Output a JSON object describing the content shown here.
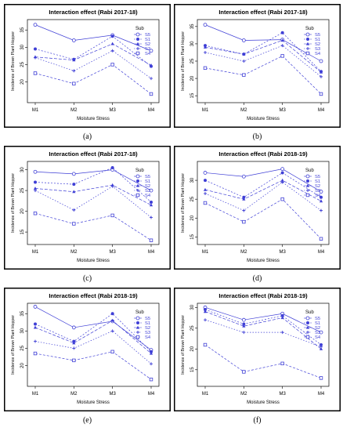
{
  "chart_data": [
    {
      "type": "line",
      "panel_label": "(a)",
      "title": "Interaction effect (Rabi 2017-18)",
      "xlabel": "Moisture Stress",
      "ylabel": "Incidence of Brown Plant Hopper",
      "categories": [
        "M1",
        "M2",
        "M3",
        "M4"
      ],
      "ylim": [
        14,
        38
      ],
      "yticks": [
        "20",
        "25",
        "30",
        "35"
      ],
      "legend_title": "Sub",
      "legend_position": "top-right",
      "series": [
        {
          "name": "S5",
          "values": [
            36.5,
            32.0,
            33.5,
            29.0
          ]
        },
        {
          "name": "S1",
          "values": [
            29.5,
            26.5,
            33.2,
            24.5
          ]
        },
        {
          "name": "S2",
          "values": [
            27.2,
            26.3,
            31.0,
            24.8
          ]
        },
        {
          "name": "S3",
          "values": [
            27.0,
            23.2,
            29.0,
            21.0
          ]
        },
        {
          "name": "S4",
          "values": [
            22.5,
            19.5,
            25.0,
            16.5
          ]
        }
      ]
    },
    {
      "type": "line",
      "panel_label": "(b)",
      "title": "Interaction effect (Rabi 2017-18)",
      "xlabel": "Moisture Stress",
      "ylabel": "Incidence of Brown Plant Hopper",
      "categories": [
        "M1",
        "M2",
        "M3",
        "M4"
      ],
      "ylim": [
        13,
        37
      ],
      "yticks": [
        "15",
        "20",
        "25",
        "30",
        "35"
      ],
      "legend_title": "Sub",
      "legend_position": "top-right",
      "series": [
        {
          "name": "S5",
          "values": [
            35.5,
            31.0,
            31.2,
            25.0
          ]
        },
        {
          "name": "S1",
          "values": [
            29.5,
            27.0,
            33.2,
            22.0
          ]
        },
        {
          "name": "S2",
          "values": [
            29.0,
            27.0,
            31.0,
            21.8
          ]
        },
        {
          "name": "S3",
          "values": [
            27.5,
            25.0,
            29.5,
            20.5
          ]
        },
        {
          "name": "S4",
          "values": [
            23.0,
            21.0,
            26.5,
            15.5
          ]
        }
      ]
    },
    {
      "type": "line",
      "panel_label": "(c)",
      "title": "Interaction effect (Rabi 2017-18)",
      "xlabel": "Moisture Stress",
      "ylabel": "Incidence of Brown Plant Hopper",
      "categories": [
        "M1",
        "M2",
        "M3",
        "M4"
      ],
      "ylim": [
        12,
        32
      ],
      "yticks": [
        "15",
        "20",
        "25",
        "30"
      ],
      "legend_title": "Sub",
      "legend_position": "top-right",
      "series": [
        {
          "name": "S5",
          "values": [
            29.5,
            29.0,
            30.0,
            25.0
          ]
        },
        {
          "name": "S1",
          "values": [
            27.0,
            26.5,
            30.5,
            22.2
          ]
        },
        {
          "name": "S2",
          "values": [
            25.5,
            24.7,
            26.3,
            21.5
          ]
        },
        {
          "name": "S3",
          "values": [
            25.0,
            20.3,
            26.0,
            18.5
          ]
        },
        {
          "name": "S4",
          "values": [
            19.5,
            17.0,
            19.0,
            13.0
          ]
        }
      ]
    },
    {
      "type": "line",
      "panel_label": "(d)",
      "title": "Interaction effect (Rabi 2018-19)",
      "xlabel": "Moisture Stress",
      "ylabel": "Incidence of Brown Plant Hopper",
      "categories": [
        "M1",
        "M2",
        "M3",
        "M4"
      ],
      "ylim": [
        13,
        35
      ],
      "yticks": [
        "15",
        "20",
        "25",
        "30"
      ],
      "legend_title": "Sub",
      "legend_position": "top-right",
      "series": [
        {
          "name": "S5",
          "values": [
            32.0,
            31.0,
            33.0,
            27.0
          ]
        },
        {
          "name": "S1",
          "values": [
            30.0,
            25.5,
            32.0,
            25.5
          ]
        },
        {
          "name": "S2",
          "values": [
            27.5,
            25.0,
            30.0,
            24.5
          ]
        },
        {
          "name": "S3",
          "values": [
            26.5,
            22.0,
            29.5,
            22.0
          ]
        },
        {
          "name": "S4",
          "values": [
            24.0,
            19.0,
            25.0,
            14.5
          ]
        }
      ]
    },
    {
      "type": "line",
      "panel_label": "(e)",
      "title": "Interaction effect (Rabi 2018-19)",
      "xlabel": "Moisture Stress",
      "ylabel": "Incidence of Brown Plant Hopper",
      "categories": [
        "M1",
        "M2",
        "M3",
        "M4"
      ],
      "ylim": [
        14,
        38
      ],
      "yticks": [
        "20",
        "25",
        "30",
        "35"
      ],
      "legend_title": "Sub",
      "legend_position": "top-right",
      "series": [
        {
          "name": "S5",
          "values": [
            37.0,
            31.0,
            32.8,
            24.5
          ]
        },
        {
          "name": "S1",
          "values": [
            32.0,
            27.0,
            35.0,
            24.0
          ]
        },
        {
          "name": "S2",
          "values": [
            31.0,
            26.5,
            33.0,
            23.5
          ]
        },
        {
          "name": "S3",
          "values": [
            27.0,
            25.0,
            30.0,
            20.5
          ]
        },
        {
          "name": "S4",
          "values": [
            23.5,
            21.5,
            24.0,
            16.0
          ]
        }
      ]
    },
    {
      "type": "line",
      "panel_label": "(f)",
      "title": "Interaction effect (Rabi 2018-19)",
      "xlabel": "Moisture Stress",
      "ylabel": "Incidence of Brown Plant Hopper",
      "categories": [
        "M1",
        "M2",
        "M3",
        "M4"
      ],
      "ylim": [
        11,
        31
      ],
      "yticks": [
        "15",
        "20",
        "25",
        "30"
      ],
      "legend_title": "Sub",
      "legend_position": "top-right",
      "series": [
        {
          "name": "S5",
          "values": [
            30.0,
            27.0,
            28.5,
            24.0
          ]
        },
        {
          "name": "S1",
          "values": [
            29.5,
            26.0,
            28.0,
            21.0
          ]
        },
        {
          "name": "S2",
          "values": [
            29.0,
            25.5,
            27.5,
            20.0
          ]
        },
        {
          "name": "S3",
          "values": [
            27.0,
            24.0,
            24.0,
            20.5
          ]
        },
        {
          "name": "S4",
          "values": [
            21.0,
            14.5,
            16.5,
            13.0
          ]
        }
      ]
    }
  ]
}
